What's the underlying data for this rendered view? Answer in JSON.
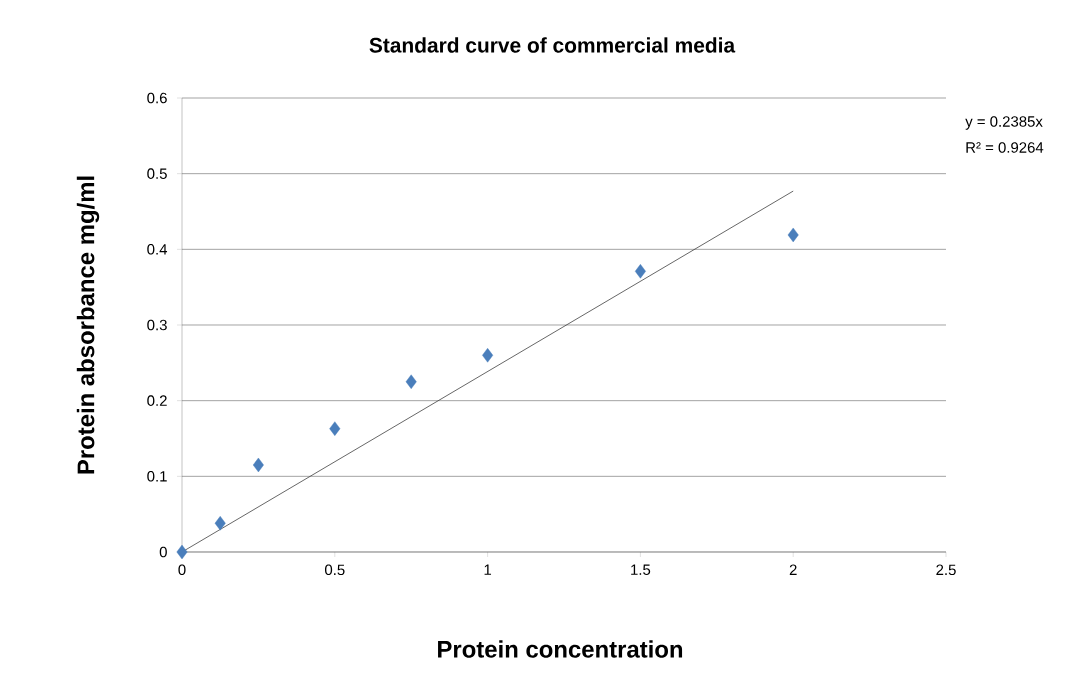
{
  "chart_data": {
    "type": "scatter",
    "title": "Standard curve of commercial media",
    "xlabel": "Protein concentration",
    "ylabel": "Protein absorbance mg/ml",
    "series": [
      {
        "color": "#4a7ebb",
        "marker": "diamond",
        "x": [
          0,
          0.125,
          0.25,
          0.5,
          0.75,
          1,
          1.5,
          2
        ],
        "values": [
          0,
          0.038,
          0.115,
          0.163,
          0.225,
          0.26,
          0.371,
          0.419
        ]
      },
      {
        "type": "line",
        "color": "#404040",
        "x": [
          0,
          2
        ],
        "values": [
          0,
          0.477
        ]
      }
    ],
    "annotations": [
      "y = 0.2385x",
      "R² = 0.9264"
    ],
    "xlim": [
      0,
      2.5
    ],
    "ylim": [
      0,
      0.6
    ],
    "xticks": [
      0,
      0.5,
      1,
      1.5,
      2,
      2.5
    ],
    "yticks": [
      0,
      0.1,
      0.2,
      0.3,
      0.4,
      0.5,
      0.6
    ],
    "grid": "y"
  }
}
